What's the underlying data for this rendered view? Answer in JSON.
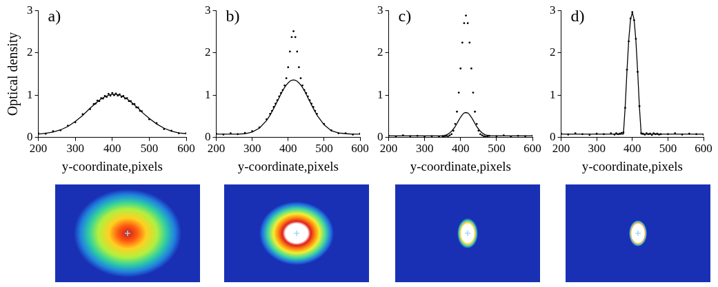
{
  "chart_data": [
    {
      "type": "line",
      "title": "a)",
      "x_label": "y-coordinate,pixels",
      "y_label": "Optical density",
      "x": [
        200,
        220,
        240,
        260,
        280,
        300,
        320,
        340,
        350,
        355,
        360,
        365,
        370,
        375,
        380,
        385,
        390,
        395,
        400,
        405,
        410,
        415,
        420,
        425,
        430,
        435,
        440,
        445,
        450,
        455,
        460,
        465,
        470,
        475,
        480,
        500,
        520,
        540,
        560,
        580,
        600
      ],
      "series": [
        {
          "type": "scatter",
          "color": "#000000",
          "marker": "dot",
          "values": [
            0.1,
            0.09,
            0.15,
            0.17,
            0.28,
            0.36,
            0.55,
            0.67,
            0.79,
            0.8,
            0.87,
            0.86,
            0.93,
            0.92,
            0.98,
            0.96,
            1.03,
            0.99,
            1.05,
            1.0,
            1.04,
            0.99,
            1.02,
            0.96,
            0.98,
            0.92,
            0.93,
            0.86,
            0.86,
            0.79,
            0.79,
            0.71,
            0.71,
            0.63,
            0.62,
            0.43,
            0.34,
            0.2,
            0.16,
            0.1,
            0.1
          ]
        },
        {
          "type": "line",
          "color": "#000000",
          "line_style": "solid",
          "values": [
            0.08,
            0.1,
            0.13,
            0.18,
            0.26,
            0.38,
            0.52,
            0.69,
            0.77,
            0.81,
            0.84,
            0.88,
            0.91,
            0.94,
            0.96,
            0.98,
            1.0,
            1.01,
            1.02,
            1.02,
            1.02,
            1.01,
            1.0,
            0.98,
            0.96,
            0.94,
            0.91,
            0.88,
            0.84,
            0.81,
            0.77,
            0.73,
            0.69,
            0.65,
            0.6,
            0.45,
            0.32,
            0.22,
            0.15,
            0.11,
            0.09
          ]
        }
      ],
      "xlim": [
        200,
        600
      ],
      "xticks": [
        200,
        300,
        400,
        500,
        600
      ],
      "ylim": [
        0,
        3
      ],
      "yticks": [
        0,
        1,
        2,
        3
      ],
      "grid": false
    },
    {
      "type": "line",
      "title": "b)",
      "x_label": "y-coordinate,pixels",
      "x": [
        200,
        220,
        240,
        260,
        280,
        300,
        320,
        340,
        350,
        355,
        360,
        365,
        370,
        375,
        380,
        385,
        390,
        395,
        400,
        405,
        410,
        415,
        420,
        425,
        430,
        435,
        440,
        445,
        450,
        455,
        460,
        465,
        470,
        475,
        480,
        500,
        520,
        540,
        560,
        580,
        600
      ],
      "series": [
        {
          "type": "scatter",
          "color": "#000000",
          "marker": "dot",
          "values": [
            0.09,
            0.07,
            0.1,
            0.08,
            0.11,
            0.15,
            0.24,
            0.43,
            0.56,
            0.63,
            0.72,
            0.8,
            0.88,
            0.97,
            1.05,
            1.12,
            1.23,
            1.4,
            1.66,
            2.03,
            2.37,
            2.51,
            2.37,
            2.03,
            1.66,
            1.4,
            1.23,
            1.12,
            1.05,
            0.97,
            0.88,
            0.8,
            0.72,
            0.63,
            0.56,
            0.32,
            0.17,
            0.1,
            0.1,
            0.07,
            0.09
          ]
        },
        {
          "type": "line",
          "color": "#000000",
          "line_style": "solid",
          "values": [
            0.08,
            0.08,
            0.08,
            0.08,
            0.09,
            0.13,
            0.22,
            0.4,
            0.53,
            0.61,
            0.69,
            0.77,
            0.86,
            0.94,
            1.03,
            1.11,
            1.18,
            1.24,
            1.29,
            1.33,
            1.35,
            1.36,
            1.35,
            1.33,
            1.29,
            1.24,
            1.18,
            1.11,
            1.03,
            0.94,
            0.86,
            0.77,
            0.69,
            0.61,
            0.53,
            0.3,
            0.16,
            0.11,
            0.09,
            0.08,
            0.08
          ]
        }
      ],
      "xlim": [
        200,
        600
      ],
      "xticks": [
        200,
        300,
        400,
        500,
        600
      ],
      "ylim": [
        0,
        3
      ],
      "yticks": [
        0,
        1,
        2,
        3
      ],
      "grid": false
    },
    {
      "type": "line",
      "title": "c)",
      "x_label": "y-coordinate,pixels",
      "x": [
        200,
        220,
        240,
        260,
        280,
        300,
        320,
        340,
        350,
        355,
        360,
        365,
        370,
        375,
        380,
        385,
        390,
        395,
        400,
        405,
        410,
        415,
        420,
        425,
        430,
        435,
        440,
        445,
        450,
        455,
        460,
        465,
        470,
        475,
        480,
        500,
        520,
        540,
        560,
        580,
        600
      ],
      "series": [
        {
          "type": "scatter",
          "color": "#000000",
          "marker": "dot",
          "values": [
            0.04,
            0.02,
            0.05,
            0.03,
            0.04,
            0.02,
            0.03,
            0.02,
            0.03,
            0.02,
            0.04,
            0.03,
            0.05,
            0.08,
            0.16,
            0.32,
            0.61,
            1.06,
            1.63,
            2.24,
            2.7,
            2.88,
            2.7,
            2.24,
            1.63,
            1.06,
            0.61,
            0.32,
            0.16,
            0.08,
            0.05,
            0.03,
            0.02,
            0.03,
            0.04,
            0.03,
            0.05,
            0.02,
            0.04,
            0.03,
            0.04
          ]
        },
        {
          "type": "line",
          "color": "#000000",
          "line_style": "solid",
          "values": [
            0.04,
            0.04,
            0.04,
            0.04,
            0.04,
            0.04,
            0.04,
            0.04,
            0.04,
            0.05,
            0.06,
            0.08,
            0.11,
            0.15,
            0.2,
            0.26,
            0.33,
            0.41,
            0.48,
            0.54,
            0.58,
            0.59,
            0.58,
            0.54,
            0.48,
            0.41,
            0.33,
            0.26,
            0.2,
            0.15,
            0.11,
            0.08,
            0.06,
            0.05,
            0.04,
            0.04,
            0.04,
            0.04,
            0.04,
            0.04,
            0.04
          ]
        }
      ],
      "xlim": [
        200,
        600
      ],
      "xticks": [
        200,
        300,
        400,
        500,
        600
      ],
      "ylim": [
        0,
        3
      ],
      "yticks": [
        0,
        1,
        2,
        3
      ],
      "grid": false
    },
    {
      "type": "line",
      "title": "d)",
      "x_label": "y-coordinate,pixels",
      "x": [
        200,
        220,
        240,
        260,
        280,
        300,
        320,
        340,
        350,
        355,
        360,
        365,
        370,
        375,
        380,
        385,
        390,
        395,
        400,
        405,
        410,
        415,
        420,
        425,
        430,
        435,
        440,
        445,
        450,
        455,
        460,
        465,
        470,
        475,
        480,
        500,
        520,
        540,
        560,
        580,
        600
      ],
      "series": [
        {
          "type": "scatter",
          "color": "#000000",
          "marker": "dot",
          "values": [
            0.09,
            0.07,
            0.1,
            0.08,
            0.06,
            0.09,
            0.08,
            0.1,
            0.07,
            0.1,
            0.08,
            0.09,
            0.11,
            0.12,
            0.7,
            1.6,
            2.27,
            2.81,
            2.96,
            2.77,
            2.33,
            1.55,
            0.74,
            0.1,
            0.09,
            0.07,
            0.1,
            0.08,
            0.09,
            0.06,
            0.1,
            0.08,
            0.09,
            0.07,
            0.08,
            0.08,
            0.1,
            0.07,
            0.09,
            0.08,
            0.07
          ]
        },
        {
          "type": "line",
          "color": "#000000",
          "line_style": "solid",
          "values": [
            0.08,
            0.08,
            0.08,
            0.08,
            0.08,
            0.08,
            0.08,
            0.08,
            0.08,
            0.08,
            0.08,
            0.08,
            0.08,
            0.08,
            0.72,
            1.57,
            2.3,
            2.79,
            2.95,
            2.79,
            2.3,
            1.57,
            0.72,
            0.08,
            0.08,
            0.08,
            0.08,
            0.08,
            0.08,
            0.08,
            0.08,
            0.08,
            0.08,
            0.08,
            0.08,
            0.08,
            0.08,
            0.08,
            0.08,
            0.08,
            0.08
          ]
        }
      ],
      "xlim": [
        200,
        600
      ],
      "xticks": [
        200,
        300,
        400,
        500,
        600
      ],
      "ylim": [
        0,
        3
      ],
      "yticks": [
        0,
        1,
        2,
        3
      ],
      "grid": false
    }
  ]
}
